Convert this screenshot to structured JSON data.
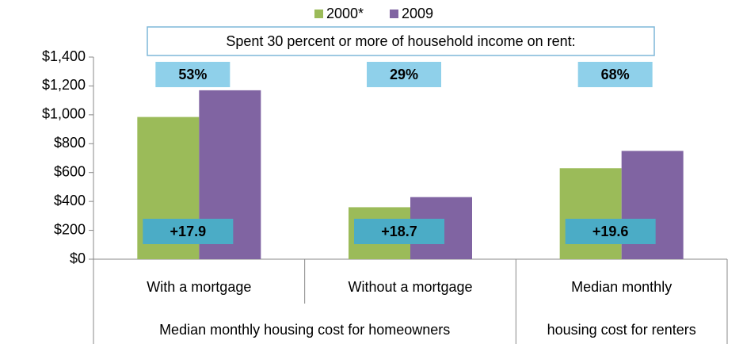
{
  "chart_data": {
    "type": "bar",
    "categories": [
      "With a mortgage",
      "Without a mortgage",
      "Median monthly"
    ],
    "group_labels": [
      "Median monthly housing cost for homeowners",
      "housing cost for renters"
    ],
    "series": [
      {
        "name": "2000*",
        "color": "#9bbb59",
        "values": [
          985,
          360,
          630
        ]
      },
      {
        "name": "2009",
        "color": "#8064a2",
        "values": [
          1170,
          430,
          750
        ]
      }
    ],
    "ylim": [
      0,
      1400
    ],
    "yticks": [
      {
        "value": 0,
        "label": "$0"
      },
      {
        "value": 200,
        "label": "$200"
      },
      {
        "value": 400,
        "label": "$400"
      },
      {
        "value": 600,
        "label": "$600"
      },
      {
        "value": 800,
        "label": "$800"
      },
      {
        "value": 1000,
        "label": "$1,000"
      },
      {
        "value": 1200,
        "label": "$1,200"
      },
      {
        "value": 1400,
        "label": "$1,400"
      }
    ],
    "annotation_title": "Spent 30 percent or more of household income on rent:",
    "share_labels": [
      "53%",
      "29%",
      "68%"
    ],
    "change_labels": [
      "+17.9",
      "+18.7",
      "+19.6"
    ]
  }
}
